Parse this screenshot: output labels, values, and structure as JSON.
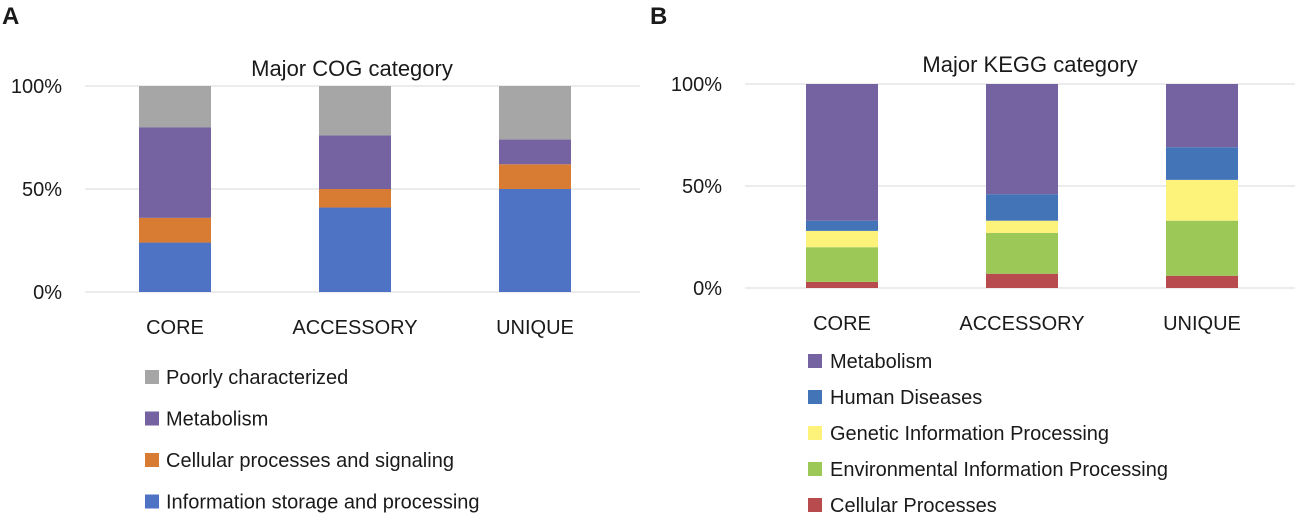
{
  "panels": {
    "A": {
      "letter": "A"
    },
    "B": {
      "letter": "B"
    }
  },
  "chart_data": [
    {
      "type": "bar",
      "stacked": true,
      "panel": "A",
      "title": "Major COG category",
      "categories": [
        "CORE",
        "ACCESSORY",
        "UNIQUE"
      ],
      "ylim": [
        0,
        100
      ],
      "yticks": [
        0,
        50,
        100
      ],
      "ytick_labels": [
        "0%",
        "50%",
        "100%"
      ],
      "grid": true,
      "legend_position": "bottom",
      "series": [
        {
          "name": "Information storage and processing",
          "color": "#4f73c4",
          "values": [
            24,
            41,
            50
          ]
        },
        {
          "name": "Cellular processes and signaling",
          "color": "#d97c33",
          "values": [
            12,
            9,
            12
          ]
        },
        {
          "name": "Metabolism",
          "color": "#7562a0",
          "values": [
            44,
            26,
            12
          ]
        },
        {
          "name": "Poorly characterized",
          "color": "#a6a6a6",
          "values": [
            20,
            24,
            26
          ]
        }
      ]
    },
    {
      "type": "bar",
      "stacked": true,
      "panel": "B",
      "title": "Major KEGG category",
      "categories": [
        "CORE",
        "ACCESSORY",
        "UNIQUE"
      ],
      "ylim": [
        0,
        100
      ],
      "yticks": [
        0,
        50,
        100
      ],
      "ytick_labels": [
        "0%",
        "50%",
        "100%"
      ],
      "grid": true,
      "legend_position": "bottom",
      "series": [
        {
          "name": "Cellular Processes",
          "color": "#b84b4e",
          "values": [
            3,
            7,
            6
          ]
        },
        {
          "name": "Environmental Information Processing",
          "color": "#9bc856",
          "values": [
            17,
            20,
            27
          ]
        },
        {
          "name": "Genetic Information Processing",
          "color": "#fdf27a",
          "values": [
            8,
            6,
            20
          ]
        },
        {
          "name": "Human Diseases",
          "color": "#4474b8",
          "values": [
            5,
            13,
            16
          ]
        },
        {
          "name": "Metabolism",
          "color": "#7562a0",
          "values": [
            67,
            54,
            31
          ]
        }
      ]
    }
  ]
}
